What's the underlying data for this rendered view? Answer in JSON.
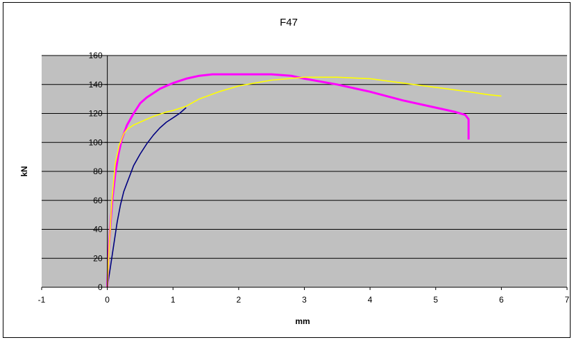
{
  "chart_data": {
    "type": "line",
    "title": "F47",
    "xlabel": "mm",
    "ylabel": "kN",
    "xlim": [
      -1,
      7
    ],
    "ylim": [
      0,
      160
    ],
    "xticks": [
      -1,
      0,
      1,
      2,
      3,
      4,
      5,
      6,
      7
    ],
    "yticks": [
      0,
      20,
      40,
      60,
      80,
      100,
      120,
      140,
      160
    ],
    "grid": true,
    "legend": "none",
    "plot_background": "#c0c0c0",
    "series": [
      {
        "color": "#000080",
        "x": [
          0,
          0.05,
          0.1,
          0.15,
          0.2,
          0.25,
          0.3,
          0.4,
          0.5,
          0.6,
          0.7,
          0.8,
          0.9,
          1.0,
          1.1,
          1.2
        ],
        "y": [
          0,
          15,
          30,
          45,
          57,
          66,
          72,
          84,
          92,
          99,
          105,
          110,
          114,
          117,
          120,
          124
        ]
      },
      {
        "color": "#ff00ff",
        "x": [
          0,
          0.02,
          0.05,
          0.08,
          0.12,
          0.17,
          0.22,
          0.3,
          0.4,
          0.5,
          0.6,
          0.7,
          0.8,
          0.9,
          1.0,
          1.2,
          1.4,
          1.6,
          1.8,
          2.0,
          2.5,
          2.8,
          3.0,
          3.5,
          4.0,
          4.5,
          5.0,
          5.3,
          5.45,
          5.5,
          5.5
        ],
        "y": [
          0,
          25,
          45,
          62,
          78,
          92,
          102,
          112,
          120,
          127,
          131,
          134,
          137,
          139,
          141,
          144,
          146,
          147,
          147,
          147,
          147,
          146,
          144,
          140,
          135,
          129,
          124,
          121,
          119,
          116,
          102
        ]
      },
      {
        "color": "#ffff00",
        "x": [
          0,
          0.03,
          0.07,
          0.12,
          0.18,
          0.25,
          0.3,
          0.4,
          0.5,
          0.7,
          0.9,
          1.0,
          1.2,
          1.4,
          1.7,
          2.0,
          2.5,
          3.0,
          3.5,
          4.0,
          4.5,
          5.0,
          5.5,
          5.8,
          6.0
        ],
        "y": [
          0,
          30,
          60,
          85,
          98,
          106,
          109,
          112,
          114,
          118,
          121,
          122,
          125,
          130,
          135,
          139,
          143,
          145,
          145,
          144,
          141,
          138,
          135,
          133,
          132
        ]
      }
    ]
  }
}
